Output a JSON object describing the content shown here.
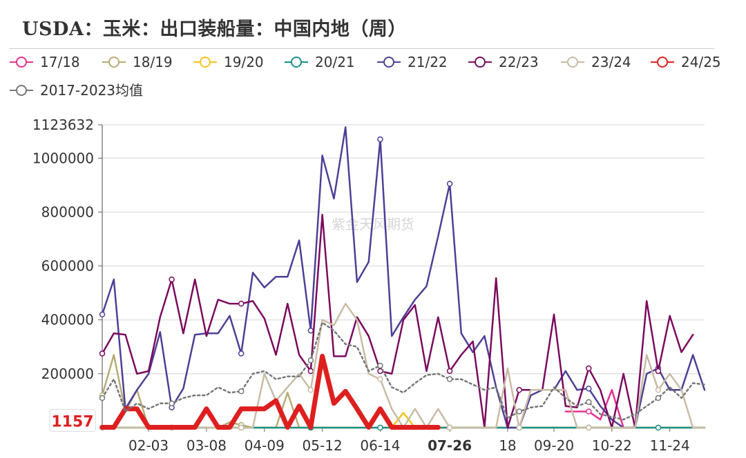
{
  "chart_data": {
    "type": "line",
    "title": "USDA：玉米：出口装船量：中国内地（周）",
    "y_ticks": [
      "1123632",
      "1000000",
      "800000",
      "600000",
      "400000",
      "200000"
    ],
    "ylim": [
      0,
      1123632
    ],
    "x_ticks": [
      "02-03",
      "03-08",
      "04-09",
      "05-12",
      "06-14",
      "07-26",
      "18",
      "09-20",
      "10-22",
      "11-24"
    ],
    "x_count": 53,
    "highlight_label": "07-26",
    "value_label": "1157",
    "watermark": "紫金天风期货",
    "legend_position": "top",
    "grid": true,
    "series": [
      {
        "name": "17/18",
        "color": "#e8318f",
        "width": 2.5,
        "dash": false,
        "values": [
          null,
          null,
          null,
          null,
          null,
          null,
          null,
          null,
          null,
          null,
          null,
          null,
          null,
          null,
          null,
          null,
          null,
          null,
          null,
          null,
          null,
          null,
          null,
          null,
          null,
          null,
          null,
          null,
          null,
          null,
          null,
          null,
          null,
          null,
          null,
          null,
          null,
          null,
          null,
          null,
          60000,
          60000,
          60000,
          30000,
          140000,
          0,
          null,
          null,
          null,
          null,
          null,
          null,
          null
        ]
      },
      {
        "name": "18/19",
        "color": "#b8ab77",
        "width": 2.5,
        "dash": false,
        "values": [
          120000,
          270000,
          60000,
          140000,
          0,
          0,
          0,
          0,
          0,
          0,
          0,
          20000,
          10000,
          0,
          0,
          0,
          130000,
          0,
          0,
          0,
          0,
          0,
          0,
          0,
          0,
          0,
          0,
          0,
          0,
          0,
          0,
          0,
          0,
          0,
          0,
          0,
          0,
          0,
          0,
          0,
          0,
          0,
          0,
          0,
          0,
          0,
          0,
          0,
          0,
          0,
          0,
          0,
          0
        ]
      },
      {
        "name": "19/20",
        "color": "#f5c41a",
        "width": 2.5,
        "dash": false,
        "values": [
          0,
          0,
          0,
          0,
          0,
          0,
          0,
          0,
          0,
          0,
          0,
          0,
          0,
          0,
          0,
          0,
          0,
          0,
          0,
          0,
          0,
          0,
          0,
          0,
          0,
          0,
          55000,
          0,
          0,
          0,
          0,
          0,
          0,
          0,
          0,
          0,
          0,
          0,
          0,
          0,
          0,
          0,
          0,
          0,
          0,
          0,
          0,
          0,
          0,
          0,
          0,
          0,
          0
        ]
      },
      {
        "name": "20/21",
        "color": "#1a8f8f",
        "width": 2.5,
        "dash": false,
        "values": [
          0,
          0,
          0,
          0,
          0,
          0,
          0,
          0,
          0,
          0,
          0,
          0,
          0,
          0,
          0,
          0,
          0,
          0,
          0,
          0,
          0,
          0,
          0,
          0,
          0,
          0,
          0,
          0,
          0,
          0,
          0,
          0,
          0,
          0,
          0,
          0,
          0,
          0,
          0,
          0,
          0,
          0,
          0,
          0,
          0,
          0,
          0,
          0,
          0,
          0,
          0,
          0,
          0
        ]
      },
      {
        "name": "21/22",
        "color": "#4e3f96",
        "width": 2.5,
        "dash": false,
        "values": [
          420000,
          550000,
          70000,
          140000,
          200000,
          355000,
          75000,
          145000,
          345000,
          350000,
          350000,
          415000,
          275000,
          575000,
          520000,
          560000,
          560000,
          695000,
          360000,
          1010000,
          850000,
          1115000,
          540000,
          615000,
          1070000,
          340000,
          410000,
          475000,
          525000,
          710000,
          905000,
          350000,
          280000,
          340000,
          150000,
          0,
          0,
          120000,
          140000,
          140000,
          210000,
          140000,
          145000,
          80000,
          30000,
          0,
          0,
          200000,
          220000,
          140000,
          140000,
          270000,
          140000
        ]
      },
      {
        "name": "22/23",
        "color": "#7a0a5e",
        "width": 2.5,
        "dash": false,
        "values": [
          275000,
          350000,
          345000,
          200000,
          210000,
          410000,
          550000,
          350000,
          550000,
          340000,
          475000,
          460000,
          460000,
          470000,
          405000,
          270000,
          460000,
          270000,
          210000,
          790000,
          265000,
          265000,
          410000,
          340000,
          210000,
          200000,
          400000,
          455000,
          210000,
          410000,
          210000,
          270000,
          320000,
          0,
          555000,
          0,
          140000,
          140000,
          140000,
          420000,
          80000,
          75000,
          220000,
          140000,
          0,
          200000,
          0,
          470000,
          210000,
          415000,
          280000,
          345000
        ]
      },
      {
        "name": "23/24",
        "color": "#c9bba5",
        "width": 2.5,
        "dash": false,
        "values": [
          0,
          0,
          0,
          0,
          0,
          0,
          0,
          0,
          0,
          0,
          0,
          0,
          0,
          0,
          200000,
          100000,
          150000,
          200000,
          140000,
          400000,
          380000,
          460000,
          400000,
          200000,
          180000,
          70000,
          0,
          70000,
          0,
          70000,
          0,
          0,
          0,
          0,
          0,
          220000,
          0,
          140000,
          140000,
          140000,
          140000,
          0,
          0,
          0,
          0,
          0,
          0,
          270000,
          140000,
          200000,
          140000,
          0,
          0
        ]
      },
      {
        "name": "24/25",
        "color": "#de1f1f",
        "width": 7,
        "dash": false,
        "values": [
          1157,
          1157,
          70000,
          70000,
          1157,
          1157,
          1157,
          1157,
          1157,
          70000,
          1157,
          1157,
          70000,
          70000,
          70000,
          100000,
          1157,
          80000,
          1157,
          265000,
          90000,
          135000,
          70000,
          1157,
          70000,
          1157,
          1157,
          1157,
          1157,
          1157
        ]
      },
      {
        "name": "2017-2023均值",
        "color": "#777777",
        "width": 2.5,
        "dash": true,
        "values": [
          110000,
          180000,
          60000,
          90000,
          70000,
          90000,
          90000,
          110000,
          120000,
          120000,
          150000,
          130000,
          135000,
          200000,
          210000,
          180000,
          190000,
          190000,
          250000,
          390000,
          360000,
          310000,
          300000,
          210000,
          230000,
          150000,
          130000,
          165000,
          195000,
          200000,
          180000,
          180000,
          160000,
          140000,
          150000,
          35000,
          60000,
          75000,
          80000,
          150000,
          110000,
          80000,
          95000,
          50000,
          40000,
          30000,
          50000,
          80000,
          110000,
          150000,
          110000,
          165000,
          160000
        ]
      }
    ]
  }
}
